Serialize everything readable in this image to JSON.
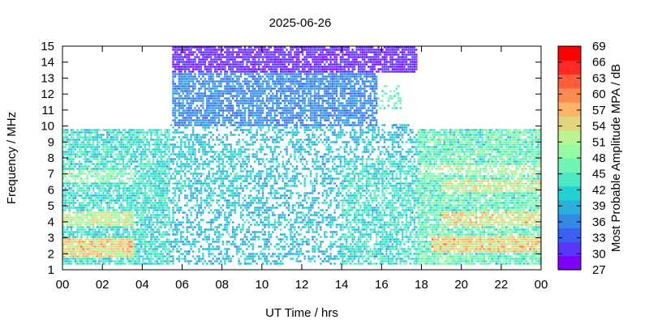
{
  "chart_data": {
    "type": "heatmap",
    "title": "2025-06-26",
    "xlabel": "UT Time / hrs",
    "ylabel": "Frequency / MHz",
    "xlim": [
      0,
      24
    ],
    "ylim": [
      1,
      15
    ],
    "x_ticks": [
      "00",
      "02",
      "04",
      "06",
      "08",
      "10",
      "12",
      "14",
      "16",
      "18",
      "20",
      "22",
      "00"
    ],
    "y_ticks": [
      "1",
      "2",
      "3",
      "4",
      "5",
      "6",
      "7",
      "8",
      "9",
      "10",
      "11",
      "12",
      "13",
      "14",
      "15"
    ],
    "grid": false,
    "colorbar": {
      "label": "Most Probable Amplitude MPA / dB",
      "min": 27,
      "max": 69,
      "ticks": [
        "27",
        "30",
        "33",
        "36",
        "39",
        "42",
        "45",
        "48",
        "51",
        "54",
        "57",
        "60",
        "63",
        "66",
        "69"
      ],
      "colors": [
        "#7f00ff",
        "#5a35fa",
        "#3a60f0",
        "#3289e6",
        "#29b0dc",
        "#22d2d0",
        "#4fe8c4",
        "#72f5b4",
        "#95fca4",
        "#bcf492",
        "#e0d67e",
        "#fdb368",
        "#ff8a52",
        "#ff5e3c",
        "#ff2a24",
        "#ff0000"
      ]
    },
    "regions": [
      {
        "t": [
          0,
          5.4
        ],
        "f": [
          1.3,
          9.8
        ],
        "density": 0.82,
        "mean": 43,
        "spread": 5
      },
      {
        "t": [
          0,
          3.6
        ],
        "f": [
          1.8,
          3.0
        ],
        "density": 0.95,
        "mean": 55,
        "spread": 6
      },
      {
        "t": [
          0,
          3.6
        ],
        "f": [
          3.8,
          4.6
        ],
        "density": 0.9,
        "mean": 52,
        "spread": 6
      },
      {
        "t": [
          0,
          3.6
        ],
        "f": [
          6.5,
          7.3
        ],
        "density": 0.7,
        "mean": 48,
        "spread": 5
      },
      {
        "t": [
          5.4,
          18.0
        ],
        "f": [
          1.3,
          10.2
        ],
        "density": 0.45,
        "mean": 40,
        "spread": 4
      },
      {
        "t": [
          5.5,
          9.0
        ],
        "f": [
          5.0,
          9.0
        ],
        "density": 0.55,
        "mean": 41,
        "spread": 4
      },
      {
        "t": [
          5.5,
          15.8
        ],
        "f": [
          10.0,
          13.5
        ],
        "density": 0.8,
        "mean": 36,
        "spread": 3
      },
      {
        "t": [
          5.5,
          17.8
        ],
        "f": [
          13.3,
          15.0
        ],
        "density": 0.85,
        "mean": 30,
        "spread": 2
      },
      {
        "t": [
          14.0,
          18.0
        ],
        "f": [
          1.3,
          8.0
        ],
        "density": 0.7,
        "mean": 43,
        "spread": 5
      },
      {
        "t": [
          15.8,
          17.0
        ],
        "f": [
          11.0,
          12.5
        ],
        "density": 0.3,
        "mean": 47,
        "spread": 5
      },
      {
        "t": [
          17.8,
          24
        ],
        "f": [
          1.3,
          9.8
        ],
        "density": 0.9,
        "mean": 46,
        "spread": 6
      },
      {
        "t": [
          18.5,
          24
        ],
        "f": [
          2.0,
          3.2
        ],
        "density": 0.95,
        "mean": 55,
        "spread": 6
      },
      {
        "t": [
          19.0,
          24
        ],
        "f": [
          3.8,
          4.6
        ],
        "density": 0.85,
        "mean": 54,
        "spread": 6
      },
      {
        "t": [
          19.0,
          24
        ],
        "f": [
          5.8,
          6.6
        ],
        "density": 0.85,
        "mean": 52,
        "spread": 6
      },
      {
        "t": [
          18.0,
          24
        ],
        "f": [
          7.0,
          7.6
        ],
        "density": 0.6,
        "mean": 50,
        "spread": 6
      }
    ]
  }
}
